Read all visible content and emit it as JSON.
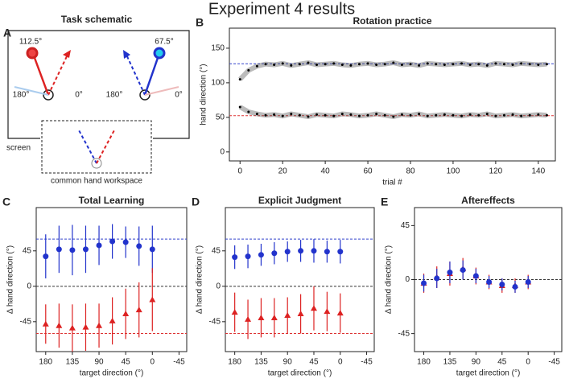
{
  "title": "Experiment 4 results",
  "schematic": {
    "panel": "A",
    "title": "Task schematic",
    "left_angle": "112.5°",
    "right_angle": "67.5°",
    "left_180": "180°",
    "left_0": "0°",
    "right_180": "180°",
    "right_0": "0°",
    "screen": "screen",
    "workspace": "common hand workspace"
  },
  "chart_data": [
    {
      "type": "line",
      "panel": "B",
      "title": "Rotation practice",
      "x_label": "trial #",
      "y_label": "hand direction (°)",
      "x": [
        0,
        4,
        8,
        12,
        16,
        20,
        24,
        28,
        32,
        36,
        40,
        44,
        48,
        52,
        56,
        60,
        64,
        68,
        72,
        76,
        80,
        84,
        88,
        92,
        96,
        100,
        104,
        108,
        112,
        116,
        120,
        124,
        128,
        132,
        136,
        140,
        144
      ],
      "series": [
        {
          "color": "#555555",
          "values": [
            105,
            118,
            124,
            127,
            126,
            128,
            125,
            127,
            129,
            126,
            127,
            128,
            126,
            125,
            127,
            128,
            126,
            127,
            129,
            126,
            127,
            125,
            128,
            127,
            126,
            127,
            128,
            126,
            127,
            125,
            128,
            127,
            126,
            128,
            127,
            126,
            127
          ]
        },
        {
          "color": "#555555",
          "values": [
            65,
            58,
            55,
            53,
            54,
            52,
            55,
            53,
            51,
            54,
            53,
            52,
            55,
            54,
            52,
            53,
            55,
            53,
            51,
            54,
            53,
            55,
            52,
            53,
            54,
            53,
            52,
            54,
            53,
            55,
            52,
            53,
            54,
            52,
            53,
            54,
            53
          ]
        }
      ],
      "hlines": [
        {
          "value": 127.5,
          "color": "#3344cc"
        },
        {
          "value": 52.5,
          "color": "#dd3333"
        }
      ],
      "xlim": [
        -5,
        148
      ],
      "xticks": [
        0,
        20,
        40,
        60,
        80,
        100,
        120,
        140
      ],
      "ylim": [
        -13,
        179
      ],
      "yticks": [
        0,
        50,
        100,
        150
      ]
    },
    {
      "type": "scatter",
      "panel": "C",
      "title": "Total Learning",
      "x_label": "target direction (°)",
      "y_label": "Δ hand direction (°)",
      "x": [
        180,
        157.5,
        135,
        112.5,
        90,
        67.5,
        45,
        22.5,
        0
      ],
      "series": [
        {
          "color": "#2233cc",
          "marker": "circle",
          "values": [
            38,
            47,
            46,
            47,
            52,
            57,
            56,
            51,
            47
          ],
          "errors": [
            28,
            30,
            32,
            30,
            25,
            22,
            20,
            25,
            30
          ]
        },
        {
          "color": "#dd2222",
          "marker": "triangle",
          "values": [
            -48,
            -50,
            -53,
            -52,
            -50,
            -44,
            -35,
            -30,
            -17
          ],
          "errors": [
            25,
            28,
            30,
            30,
            28,
            30,
            32,
            35,
            40
          ]
        }
      ],
      "hlines": [
        {
          "value": 0,
          "color": "#333333"
        },
        {
          "value": 60,
          "color": "#3344cc"
        },
        {
          "value": -60,
          "color": "#dd3333"
        }
      ],
      "xlim": [
        196,
        -58
      ],
      "xticks": [
        180,
        135,
        90,
        45,
        0,
        -45
      ],
      "ylim": [
        -83,
        100
      ],
      "yticks": [
        -45,
        0,
        45
      ]
    },
    {
      "type": "scatter",
      "panel": "D",
      "title": "Explicit Judgment",
      "x_label": "target direction (°)",
      "y_label": "Δ hand direction (°)",
      "x": [
        180,
        157.5,
        135,
        112.5,
        90,
        67.5,
        45,
        22.5,
        0
      ],
      "series": [
        {
          "color": "#2233cc",
          "marker": "circle",
          "values": [
            37,
            38,
            40,
            42,
            44,
            45,
            45,
            44,
            44
          ],
          "errors": [
            15,
            15,
            14,
            14,
            13,
            14,
            15,
            14,
            15
          ]
        },
        {
          "color": "#dd2222",
          "marker": "triangle",
          "values": [
            -33,
            -42,
            -40,
            -40,
            -37,
            -35,
            -28,
            -32,
            -34
          ],
          "errors": [
            25,
            25,
            25,
            25,
            23,
            25,
            28,
            25,
            25
          ]
        }
      ],
      "hlines": [
        {
          "value": 0,
          "color": "#333333"
        },
        {
          "value": 60,
          "color": "#3344cc"
        },
        {
          "value": -60,
          "color": "#dd3333"
        }
      ],
      "xlim": [
        196,
        -58
      ],
      "xticks": [
        180,
        135,
        90,
        45,
        0,
        -45
      ],
      "ylim": [
        -83,
        100
      ],
      "yticks": [
        -45,
        0,
        45
      ]
    },
    {
      "type": "scatter",
      "panel": "E",
      "title": "Aftereffects",
      "x_label": "target direction (°)",
      "y_label": "Δ hand direction (°)",
      "x": [
        180,
        157.5,
        135,
        112.5,
        90,
        67.5,
        45,
        22.5,
        0
      ],
      "series": [
        {
          "color": "#dd2222",
          "marker": "triangle",
          "values": [
            -3,
            2,
            5,
            9,
            3,
            -2,
            -5,
            -5,
            -2
          ],
          "errors": [
            8,
            9,
            10,
            9,
            7,
            6,
            6,
            6,
            6
          ]
        },
        {
          "color": "#2233cc",
          "marker": "circle",
          "values": [
            -3,
            1,
            6,
            8,
            3,
            -2,
            -4,
            -6,
            -2
          ],
          "errors": [
            7,
            8,
            9,
            8,
            6,
            5,
            5,
            5,
            5
          ]
        }
      ],
      "hlines": [
        {
          "value": 0,
          "color": "#333333"
        }
      ],
      "xlim": [
        196,
        -58
      ],
      "xticks": [
        180,
        135,
        90,
        45,
        0,
        -45
      ],
      "ylim": [
        -60,
        60
      ],
      "yticks": [
        -45,
        0,
        45
      ]
    }
  ]
}
